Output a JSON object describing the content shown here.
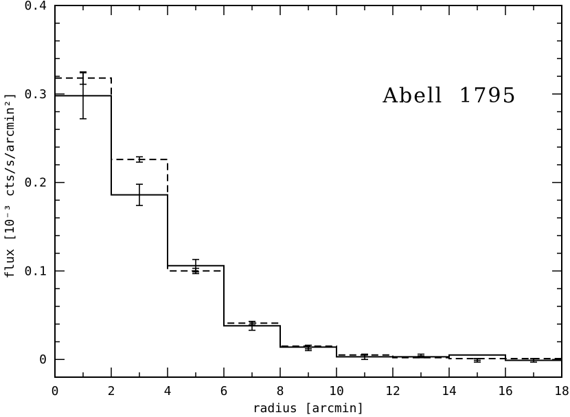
{
  "chart_data": {
    "type": "line",
    "step": true,
    "title": "",
    "annotation": "Abell  1795",
    "xlabel": "radius [arcmin]",
    "ylabel": "flux [10⁻³ cts/s/arcmin²]",
    "xlim": [
      0,
      18
    ],
    "ylim": [
      -0.02,
      0.4
    ],
    "x_ticks": [
      0,
      2,
      4,
      6,
      8,
      10,
      12,
      14,
      16,
      18
    ],
    "x_tick_labels": [
      "0",
      "2",
      "4",
      "6",
      "8",
      "10",
      "12",
      "14",
      "16",
      "18"
    ],
    "y_ticks": [
      0,
      0.1,
      0.2,
      0.3,
      0.4
    ],
    "y_tick_labels": [
      "0",
      "0.1",
      "0.2",
      "0.3",
      "0.4"
    ],
    "bin_edges": [
      0,
      2,
      4,
      6,
      8,
      10,
      12,
      14,
      16,
      18
    ],
    "series": [
      {
        "style": "solid",
        "values": [
          0.298,
          0.186,
          0.106,
          0.038,
          0.014,
          0.003,
          0.003,
          0.005,
          -0.001
        ],
        "points_x": [
          1,
          3,
          5,
          7,
          9,
          11,
          13,
          15,
          17
        ],
        "points_y": [
          0.298,
          0.186,
          0.106,
          0.038,
          0.013,
          0.003,
          0.004,
          -0.001,
          -0.001
        ],
        "errors": [
          0.026,
          0.012,
          0.007,
          0.005,
          0.003,
          0.003,
          0.002,
          0.002,
          0.002
        ]
      },
      {
        "style": "dashed",
        "values": [
          0.318,
          0.226,
          0.1,
          0.041,
          0.015,
          0.005,
          0.002,
          0.001,
          0.001
        ],
        "points_x": [
          1,
          3,
          5,
          7,
          9,
          11,
          13,
          15,
          17
        ],
        "points_y": [
          0.318,
          0.226,
          0.1,
          0.041,
          0.014,
          0.004,
          0.003,
          0.0,
          0.0
        ],
        "errors": [
          0.007,
          0.003,
          0.003,
          0.002,
          0.002,
          0.001,
          0.001,
          0.001,
          0.001
        ]
      }
    ]
  }
}
